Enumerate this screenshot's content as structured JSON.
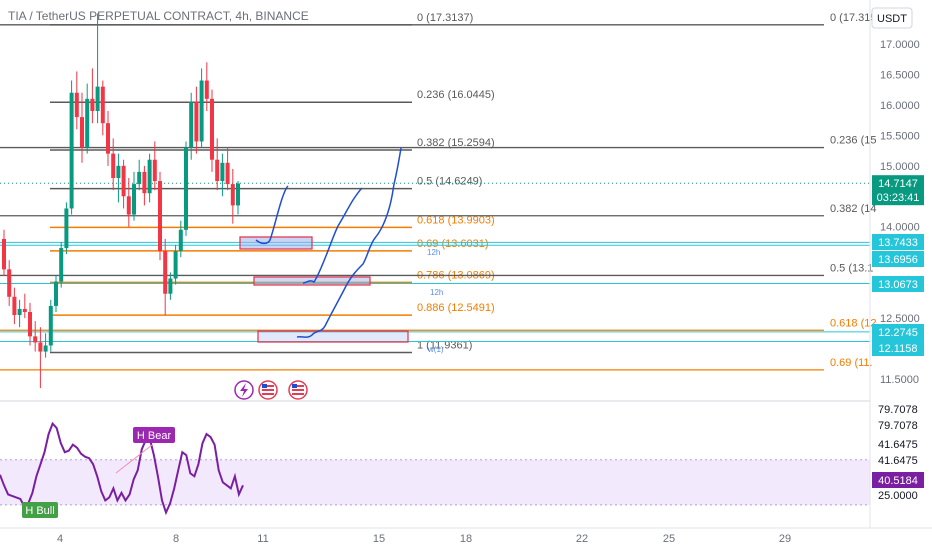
{
  "header": {
    "title": "TIA / TetherUS PERPETUAL CONTRACT, 4h, BINANCE",
    "currency": "USDT"
  },
  "chart_data": [
    {
      "type": "candlestick",
      "title": "TIA / TetherUS PERPETUAL CONTRACT, 4h, BINANCE",
      "y_axis_unit": "USDT",
      "ylim": [
        11.15,
        17.45
      ],
      "y_ticks": [
        "17.0000",
        "16.5000",
        "16.0000",
        "15.5000",
        "15.0000",
        "14.0000",
        "12.5000",
        "11.5000"
      ],
      "x_ticks": [
        "4",
        "8",
        "11",
        "15",
        "18",
        "22",
        "25",
        "29"
      ],
      "x_tick_days": [
        4,
        8,
        11,
        15,
        18,
        22,
        25,
        29
      ],
      "grid": false,
      "candles_ohlc": [
        [
          13.8,
          13.95,
          13.2,
          13.3
        ],
        [
          13.3,
          13.45,
          12.7,
          12.85
        ],
        [
          12.85,
          13.0,
          12.4,
          12.55
        ],
        [
          12.55,
          12.8,
          12.35,
          12.65
        ],
        [
          12.65,
          12.9,
          12.5,
          12.6
        ],
        [
          12.6,
          12.75,
          12.05,
          12.2
        ],
        [
          12.2,
          12.45,
          11.95,
          12.1
        ],
        [
          12.1,
          12.35,
          11.35,
          11.95
        ],
        [
          11.95,
          12.25,
          11.85,
          12.05
        ],
        [
          12.05,
          12.8,
          11.95,
          12.7
        ],
        [
          12.7,
          13.2,
          12.6,
          13.1
        ],
        [
          13.1,
          13.75,
          13.0,
          13.65
        ],
        [
          13.65,
          14.4,
          13.55,
          14.3
        ],
        [
          14.3,
          16.4,
          14.2,
          16.2
        ],
        [
          16.2,
          16.55,
          15.6,
          15.8
        ],
        [
          15.8,
          16.2,
          15.05,
          15.3
        ],
        [
          15.3,
          16.35,
          15.2,
          16.1
        ],
        [
          16.1,
          16.6,
          15.7,
          15.9
        ],
        [
          15.9,
          17.5,
          15.7,
          16.3
        ],
        [
          16.3,
          16.4,
          15.5,
          15.7
        ],
        [
          15.7,
          15.9,
          15.0,
          15.2
        ],
        [
          15.2,
          15.45,
          14.6,
          14.8
        ],
        [
          14.8,
          15.2,
          14.4,
          15.0
        ],
        [
          15.0,
          15.1,
          14.3,
          14.5
        ],
        [
          14.5,
          14.8,
          14.0,
          14.2
        ],
        [
          14.2,
          14.9,
          14.1,
          14.7
        ],
        [
          14.7,
          15.1,
          14.6,
          14.9
        ],
        [
          14.9,
          15.0,
          14.35,
          14.55
        ],
        [
          14.55,
          15.2,
          14.4,
          15.1
        ],
        [
          15.1,
          15.4,
          14.6,
          14.75
        ],
        [
          14.75,
          14.9,
          13.45,
          13.6
        ],
        [
          13.6,
          13.8,
          12.55,
          12.9
        ],
        [
          12.9,
          13.25,
          12.8,
          13.15
        ],
        [
          13.15,
          13.7,
          13.05,
          13.6
        ],
        [
          13.6,
          14.1,
          13.5,
          13.95
        ],
        [
          13.95,
          15.4,
          13.85,
          15.3
        ],
        [
          15.3,
          16.2,
          15.1,
          16.05
        ],
        [
          16.05,
          16.3,
          15.2,
          15.4
        ],
        [
          15.4,
          16.6,
          15.3,
          16.4
        ],
        [
          16.4,
          16.7,
          15.9,
          16.1
        ],
        [
          16.1,
          16.25,
          14.9,
          15.1
        ],
        [
          15.1,
          15.45,
          14.6,
          14.75
        ],
        [
          14.75,
          15.2,
          14.5,
          15.05
        ],
        [
          15.05,
          15.3,
          14.6,
          14.7
        ],
        [
          14.7,
          14.95,
          14.05,
          14.35
        ],
        [
          14.35,
          14.75,
          14.2,
          14.71
        ]
      ],
      "horizontal_levels": [
        {
          "label": "0 (17.3137)",
          "value": 17.3137,
          "color": "#5a5a5a"
        },
        {
          "label": "0.236 (16.0445)",
          "value": 16.0445,
          "color": "#5a5a5a"
        },
        {
          "label": "0.382 (15.2594)",
          "value": 15.2594,
          "color": "#5a5a5a"
        },
        {
          "label": "0.5 (14.6249)",
          "value": 14.6249,
          "color": "#5a5a5a"
        },
        {
          "label": "0.618 (13.9903)",
          "value": 13.9903,
          "color": "#f57c00"
        },
        {
          "label": "0.69 (13.6031)",
          "value": 13.6031,
          "color": "#f57c00"
        },
        {
          "label": "0.786 (13.0869)",
          "value": 13.0869,
          "color": "#f57c00"
        },
        {
          "label": "0.886 (12.5491)",
          "value": 12.5491,
          "color": "#f57c00"
        },
        {
          "label": "1 (11.9361)",
          "value": 11.9361,
          "color": "#5a5a5a"
        }
      ],
      "secondary_levels": [
        {
          "label": "0 (17.315",
          "value": 17.315
        },
        {
          "label": "0.236 (15",
          "value": 15.3
        },
        {
          "label": "0.382 (14",
          "value": 14.18
        },
        {
          "label": "0.5 (13.1",
          "value": 13.2
        },
        {
          "label": "0.618 (12",
          "value": 12.3
        },
        {
          "label": "0.69 (11.",
          "value": 11.65
        }
      ],
      "price_tags": [
        {
          "value": "14.7147",
          "sub": "03:23:41",
          "color": "#089981"
        },
        {
          "value": "13.7433",
          "color": "#26c6da"
        },
        {
          "value": "13.6956",
          "color": "#26c6da"
        },
        {
          "value": "13.0673",
          "color": "#26c6da"
        },
        {
          "value": "12.2745",
          "color": "#26c6da"
        },
        {
          "value": "12.1158",
          "color": "#26c6da"
        }
      ],
      "annotations": [
        "12h",
        "12h",
        "w(1)"
      ]
    },
    {
      "type": "line",
      "title": "RSI",
      "ylim": [
        15,
        88
      ],
      "y_ticks": [
        "79.7078",
        "79.7078",
        "41.6475",
        "41.6475",
        "25.0000"
      ],
      "band": [
        25,
        55
      ],
      "current_value": "40.5184",
      "line_color": "#7b1fa2",
      "series": [
        {
          "values": [
            45,
            38,
            32,
            31,
            30,
            29,
            24,
            26,
            33,
            44,
            52,
            60,
            72,
            79,
            76,
            66,
            60,
            61,
            65,
            63,
            59,
            57,
            56,
            52,
            44,
            34,
            28,
            30,
            36,
            28,
            33,
            28,
            32,
            42,
            48,
            62,
            68,
            69,
            58,
            44,
            28,
            20,
            26,
            36,
            48,
            60,
            58,
            46,
            44,
            52,
            66,
            72,
            70,
            65,
            48,
            40,
            38,
            36,
            44,
            32,
            38
          ]
        }
      ],
      "divergences": [
        {
          "label": "H Bear",
          "color": "#9c27b0"
        },
        {
          "label": "H Bull",
          "color": "#43a047"
        }
      ]
    }
  ]
}
